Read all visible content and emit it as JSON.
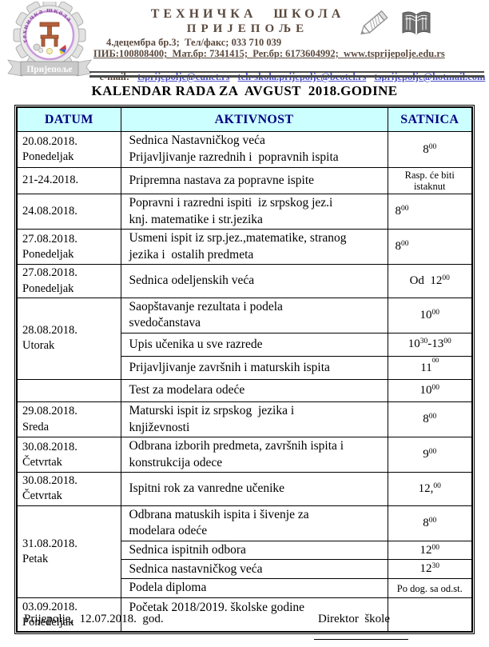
{
  "header": {
    "school_name_line1": "ТЕХНИЧКА ШКОЛА",
    "school_name_line2": "ПРИЈЕПОЉЕ",
    "address_line": "4.децембра бр.3;  Тел/факс; 033 710 039",
    "registry_line": "ПИБ:100808400;  Мат.бр: 7341415;  Рег.бр: 6173604992;  www.tsprijepolje.edu.rs",
    "email_label": "e-mail:",
    "emails": [
      "tsprijepolje@eunet.rs",
      "teh-skola.prijepolje@beotel.rs",
      "tsprijepolje@hotmail.com"
    ],
    "logo": {
      "ring_text": "техничка школа",
      "banner": "Пријепоље"
    },
    "colors": {
      "brand_text": "#5a493e",
      "link": "#4a50c8",
      "rule": "#4a4a4a"
    }
  },
  "title": "KALENDAR RADA ZA  AVGUST  2018.GODINE",
  "table": {
    "columns": [
      "DATUM",
      "AKTIVNOST",
      "SATNICA"
    ],
    "style": {
      "header_bg": "#ccffff",
      "header_text": "#000080"
    },
    "rows": [
      {
        "date": "20.08.2018.\nPonedeljak",
        "activity": "Sednica Nastavničkog veća\nPrijavljivanje razrednih i  popravnih ispita",
        "satnica": "8^{00}"
      },
      {
        "date": "21-24.2018.",
        "activity": "Pripremna nastava za popravne ispite",
        "satnica": "Rasp. će biti\nistaknut",
        "sat_small": true
      },
      {
        "date": "24.08.2018.",
        "activity": "Popravni i razredni ispiti  iz srpskog jez.i\nknj. matematike i str.jezika",
        "satnica": "8^{00}",
        "sat_align": "left"
      },
      {
        "date": "27.08.2018.\nPonedeljak",
        "activity": "Usmeni ispit iz srp.jez.,matematike, stranog\njezika i  ostalih predmeta",
        "satnica": "8^{00}",
        "sat_align": "left"
      },
      {
        "date": "27.08.2018.\nPonedeljak",
        "activity": "Sednica odeljenskih veća",
        "satnica": "Od  12^{00}"
      },
      {
        "date": "28.08.2018.\nUtorak",
        "rowspan": 3,
        "activity": "Saopštavanje rezultata i podela\nsvedočanstava",
        "satnica": "10^{00}"
      },
      {
        "activity": "Upis učenika u sve razrede",
        "satnica": "10^{30}-13^{00}"
      },
      {
        "activity": "Prijavljivanje završnih i maturskih ispita",
        "satnica": "11^{00}",
        "sup_high": true
      },
      {
        "date": "",
        "activity": "Test za modelara odeće",
        "satnica": "10^{00}"
      },
      {
        "date": "29.08.2018.\nSreda",
        "activity": "Maturski ispit iz srpskog  jezika i\nknjiževnosti",
        "satnica": "8^{00}"
      },
      {
        "date": "30.08.2018.\nČetvrtak",
        "activity": "Odbrana izborih predmeta, završnih ispita i\nkonstrukcija odece",
        "satnica": "9^{00}"
      },
      {
        "date": "30.08.2018.\nČetvrtak",
        "activity": "Ispitni rok za vanredne učenike",
        "satnica": "12,^{00}"
      },
      {
        "date": "31.08.2018.\nPetak",
        "rowspan": 4,
        "activity": "Odbrana matuskih ispita i šivenje za\nmodelara odeće",
        "satnica": "8^{00}"
      },
      {
        "activity": "Sednica ispitnih odbora",
        "satnica": "12^{00}"
      },
      {
        "activity": "Sednica nastavničkog veća",
        "satnica": "12^{30}"
      },
      {
        "activity": "Podela diploma",
        "satnica": "Po dog. sa od.st.",
        "sat_small": true
      },
      {
        "date": "03.09.2018.\nPonedeljak",
        "activity": "Početak 2018/2019. školske godine",
        "satnica": "",
        "vtop": true
      }
    ]
  },
  "footer": {
    "place_date": "Prijepolje,  12.07.2018.  god.",
    "director_label": "Direktor  škole"
  }
}
